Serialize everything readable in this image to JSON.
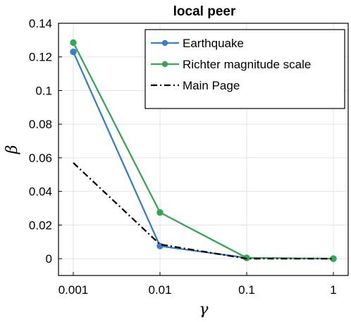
{
  "chart_data": {
    "type": "line",
    "title": "local peer",
    "xlabel": "γ",
    "ylabel": "β",
    "x_scale": "log",
    "x": [
      0.001,
      0.01,
      0.1,
      1
    ],
    "x_tick_labels": [
      "0.001",
      "0.01",
      "0.1",
      "1"
    ],
    "y_ticks": [
      0,
      0.02,
      0.04,
      0.06,
      0.08,
      0.1,
      0.12,
      0.14
    ],
    "y_tick_labels": [
      "0",
      "0.02",
      "0.04",
      "0.06",
      "0.08",
      "0.1",
      "0.12",
      "0.14"
    ],
    "xlim": [
      0.001,
      1
    ],
    "ylim": [
      -0.01,
      0.14
    ],
    "grid": true,
    "legend_position": "top-right",
    "series": [
      {
        "name": "Earthquake",
        "values": [
          0.123,
          0.0075,
          0.0005,
          0.0
        ],
        "color": "#3a7fc1",
        "style": "solid",
        "markers": true
      },
      {
        "name": "Richter magnitude scale",
        "values": [
          0.1285,
          0.0275,
          0.0005,
          0.0
        ],
        "color": "#3aa454",
        "style": "solid",
        "markers": true
      },
      {
        "name": "Main Page",
        "values": [
          0.057,
          0.0085,
          0.0,
          0.0
        ],
        "color": "#000000",
        "style": "dashdot",
        "markers": false
      }
    ]
  }
}
